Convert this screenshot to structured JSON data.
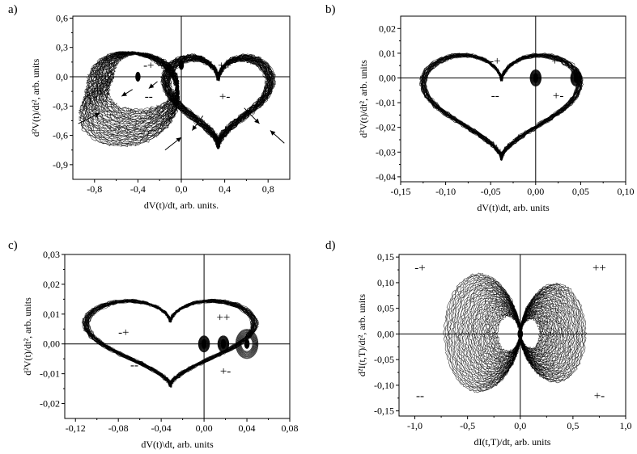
{
  "chart_data": [
    {
      "type": "scatter",
      "panel_label": "a)",
      "xlabel": "dV(t)/dt, arb. units.",
      "ylabel": "d²V(t)/dt², arb. units",
      "xlim": [
        -1.0,
        1.0
      ],
      "ylim": [
        -1.05,
        0.62
      ],
      "xticks": [
        -0.8,
        -0.4,
        0.0,
        0.4,
        0.8
      ],
      "xtick_labels": [
        "-0,8",
        "-0,4",
        "0,0",
        "0,4",
        "0,8"
      ],
      "yticks": [
        0.6,
        0.3,
        0.0,
        -0.3,
        -0.6,
        -0.9
      ],
      "ytick_labels": [
        "0,6",
        "0,3",
        "0,0",
        "-0,3",
        "-0,6",
        "-0,9"
      ],
      "zero_lines": true,
      "quadrant_labels": [
        {
          "text": "-+",
          "x": -0.3,
          "y": 0.12
        },
        {
          "text": "++",
          "x": 0.4,
          "y": 0.12
        },
        {
          "text": "--",
          "x": -0.3,
          "y": -0.2
        },
        {
          "text": "+-",
          "x": 0.4,
          "y": -0.2
        }
      ],
      "attractor": {
        "kind": "double-heart",
        "turns": 40,
        "left_lobe": {
          "xmin": -0.92,
          "xmax": 0.02,
          "ymin": -0.66,
          "ymax": 0.3
        },
        "right_lobe": {
          "xmin": -0.18,
          "xmax": 0.86,
          "ymin": -0.72,
          "ymax": 0.4
        },
        "core_points": [
          [
            -0.4,
            0.0
          ],
          [
            0.0,
            0.12
          ]
        ]
      },
      "arrows": [
        {
          "from": [
            -0.45,
            -0.13
          ],
          "to": [
            -0.55,
            -0.2
          ]
        },
        {
          "from": [
            -0.22,
            -0.05
          ],
          "to": [
            -0.3,
            -0.12
          ]
        },
        {
          "from": [
            -0.95,
            -0.48
          ],
          "to": [
            -0.75,
            -0.37
          ]
        },
        {
          "from": [
            -0.15,
            -0.75
          ],
          "to": [
            0.0,
            -0.62
          ]
        },
        {
          "from": [
            0.2,
            -0.4
          ],
          "to": [
            0.1,
            -0.55
          ]
        },
        {
          "from": [
            0.58,
            -0.32
          ],
          "to": [
            0.72,
            -0.48
          ]
        },
        {
          "from": [
            0.95,
            -0.68
          ],
          "to": [
            0.82,
            -0.55
          ]
        }
      ]
    },
    {
      "type": "scatter",
      "panel_label": "b)",
      "xlabel": "dV(t)\\dt, arb. units",
      "ylabel": "d²V(t)/dt², arb. units",
      "xlim": [
        -0.15,
        0.1
      ],
      "ylim": [
        -0.042,
        0.025
      ],
      "xticks": [
        -0.15,
        -0.1,
        -0.05,
        0.0,
        0.05,
        0.1
      ],
      "xtick_labels": [
        "-0,15",
        "-0,10",
        "-0,05",
        "0,00",
        "0,05",
        "0,10"
      ],
      "yticks": [
        0.02,
        0.01,
        0.0,
        -0.01,
        -0.02,
        -0.03,
        -0.04
      ],
      "ytick_labels": [
        "0,02",
        "0,01",
        "0,00",
        "-0,01",
        "-0,02",
        "-0,03",
        "-0,04"
      ],
      "zero_lines": true,
      "quadrant_labels": [
        {
          "text": "-+",
          "x": -0.045,
          "y": 0.007
        },
        {
          "text": "++",
          "x": 0.025,
          "y": 0.007
        },
        {
          "text": "--",
          "x": -0.045,
          "y": -0.007
        },
        {
          "text": "+-",
          "x": 0.025,
          "y": -0.007
        }
      ],
      "attractor": {
        "kind": "heart-loop",
        "turns": 30,
        "outer": {
          "xmin": -0.128,
          "xmax": 0.052,
          "ymin": -0.037,
          "ymax": 0.016
        },
        "core_points": [
          [
            0.0,
            0.0
          ],
          [
            0.045,
            0.0
          ]
        ]
      }
    },
    {
      "type": "scatter",
      "panel_label": "c)",
      "xlabel": "dV(t)\\dt, arb. units",
      "ylabel": "d²V(t)/dt², arb. units",
      "xlim": [
        -0.13,
        0.08
      ],
      "ylim": [
        -0.025,
        0.03
      ],
      "xticks": [
        -0.12,
        -0.08,
        -0.04,
        0.0,
        0.04,
        0.08
      ],
      "xtick_labels": [
        "-0,12",
        "-0,08",
        "-0,04",
        "0,00",
        "0,04",
        "0,08"
      ],
      "yticks": [
        0.03,
        0.02,
        0.01,
        0.0,
        -0.01,
        -0.02
      ],
      "ytick_labels": [
        "0,03",
        "0,02",
        "0,01",
        "0,00",
        "-0,01",
        "-0,02"
      ],
      "zero_lines": true,
      "quadrant_labels": [
        {
          "text": "-+",
          "x": -0.075,
          "y": 0.004
        },
        {
          "text": "++",
          "x": 0.018,
          "y": 0.009
        },
        {
          "text": "--",
          "x": -0.065,
          "y": -0.007
        },
        {
          "text": "+-",
          "x": 0.02,
          "y": -0.009
        }
      ],
      "attractor": {
        "kind": "heart-with-inner-loops",
        "turns": 30,
        "outer": {
          "xmin": -0.113,
          "xmax": 0.05,
          "ymin": -0.017,
          "ymax": 0.019
        },
        "core_points": [
          [
            0.0,
            0.0
          ],
          [
            0.018,
            0.0
          ],
          [
            0.04,
            0.0
          ]
        ]
      }
    },
    {
      "type": "scatter",
      "panel_label": "d)",
      "xlabel": "dI(t,T)/dt, arb. units",
      "ylabel": "d²I(t,T)/dt², arb. units",
      "xlim": [
        -1.15,
        1.0
      ],
      "ylim": [
        -0.16,
        0.155
      ],
      "xticks": [
        -1.0,
        -0.5,
        0.0,
        0.5,
        1.0
      ],
      "xtick_labels": [
        "-1,0",
        "-0,5",
        "0,0",
        "0,5",
        "1,0"
      ],
      "yticks": [
        0.15,
        0.1,
        0.05,
        0.0,
        -0.05,
        -0.1,
        -0.15
      ],
      "ytick_labels": [
        "0,15",
        "0,10",
        "0,05",
        "0,00",
        "-0,05",
        "-0,10",
        "-0,15"
      ],
      "zero_lines": true,
      "quadrant_labels": [
        {
          "text": "-+",
          "x": -0.95,
          "y": 0.13
        },
        {
          "text": "++",
          "x": 0.75,
          "y": 0.13
        },
        {
          "text": "--",
          "x": -0.95,
          "y": -0.12
        },
        {
          "text": "+-",
          "x": 0.75,
          "y": -0.12
        }
      ],
      "attractor": {
        "kind": "butterfly",
        "turns": 40,
        "left_lobe": {
          "xmin": -0.72,
          "xmax": 0.0,
          "ymin": -0.12,
          "ymax": 0.125
        },
        "right_lobe": {
          "xmin": 0.0,
          "xmax": 0.62,
          "ymin": -0.1,
          "ymax": 0.105
        },
        "core_points": [
          [
            0.0,
            0.0
          ]
        ]
      }
    }
  ]
}
